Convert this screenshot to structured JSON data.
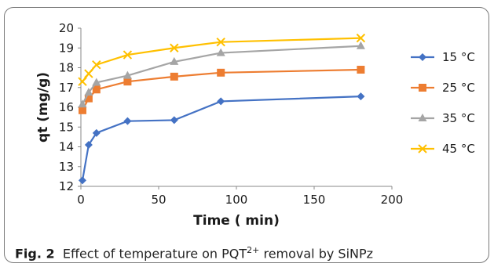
{
  "chart_data": {
    "type": "line",
    "title": "",
    "xlabel": "Time ( min)",
    "ylabel": "qt (mg/g)",
    "xlim": [
      0,
      200
    ],
    "ylim": [
      12,
      20
    ],
    "xticks": [
      0,
      50,
      100,
      150,
      200
    ],
    "yticks": [
      12,
      13,
      14,
      15,
      16,
      17,
      18,
      19,
      20
    ],
    "grid": false,
    "legend_position": "right",
    "series": [
      {
        "name": "15 °C",
        "color": "#4472C4",
        "marker": "diamond",
        "x": [
          1,
          5,
          10,
          30,
          60,
          90,
          180
        ],
        "y": [
          12.3,
          14.1,
          14.7,
          15.3,
          15.35,
          16.3,
          16.55
        ]
      },
      {
        "name": "25 °C",
        "color": "#ED7D31",
        "marker": "square",
        "x": [
          1,
          5,
          10,
          30,
          60,
          90,
          180
        ],
        "y": [
          15.85,
          16.45,
          16.9,
          17.3,
          17.55,
          17.75,
          17.9
        ]
      },
      {
        "name": "35 °C",
        "color": "#A5A5A5",
        "marker": "triangle",
        "x": [
          1,
          5,
          10,
          30,
          60,
          90,
          180
        ],
        "y": [
          16.15,
          16.75,
          17.25,
          17.6,
          18.3,
          18.75,
          19.1
        ]
      },
      {
        "name": "45 °C",
        "color": "#FFC000",
        "marker": "x",
        "x": [
          1,
          5,
          10,
          30,
          60,
          90,
          180
        ],
        "y": [
          17.3,
          17.7,
          18.15,
          18.65,
          19.0,
          19.3,
          19.5
        ]
      }
    ]
  },
  "caption": {
    "label": "Fig. 2",
    "text_before": "Effect of temperature on PQT",
    "superscript": "2+",
    "text_after": " removal by SiNPz"
  }
}
